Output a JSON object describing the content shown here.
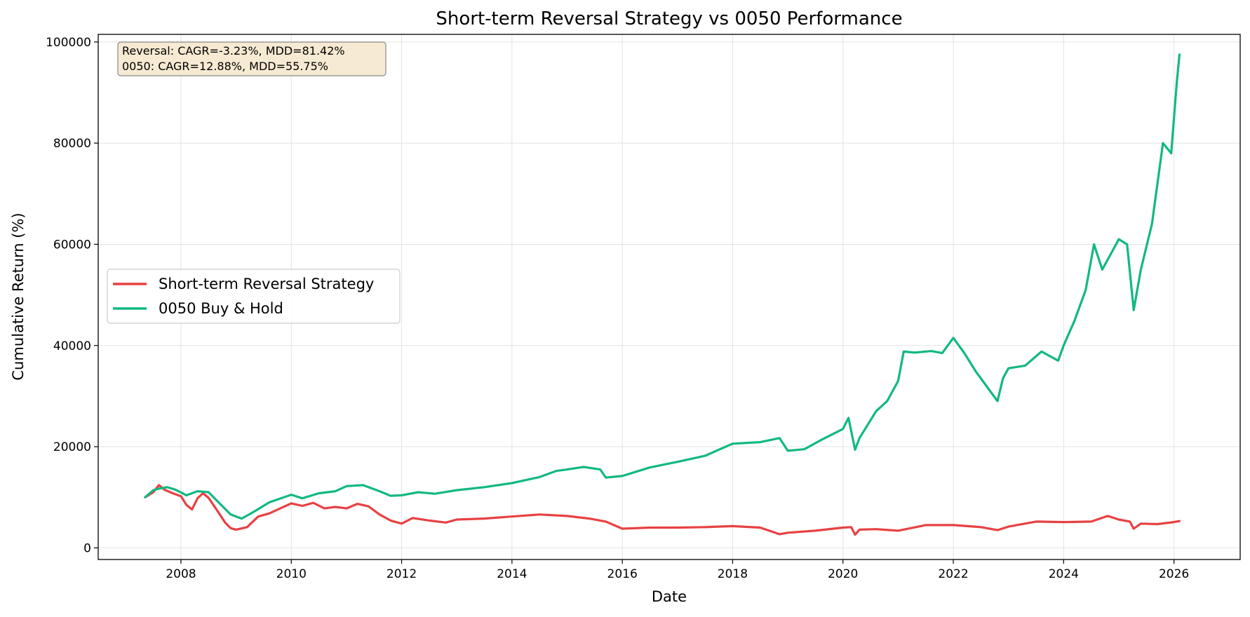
{
  "chart_data": {
    "type": "line",
    "title": "Short-term Reversal Strategy vs 0050 Performance",
    "xlabel": "Date",
    "ylabel": "Cumulative Return (%)",
    "xlim": [
      2006.5,
      2027.2
    ],
    "ylim": [
      -2300,
      101500
    ],
    "grid": true,
    "legend_position": "center-left",
    "x_ticks": [
      2008,
      2010,
      2012,
      2014,
      2016,
      2018,
      2020,
      2022,
      2024,
      2026
    ],
    "x_tick_labels": [
      "2008",
      "2010",
      "2012",
      "2014",
      "2016",
      "2018",
      "2020",
      "2022",
      "2024",
      "2026"
    ],
    "y_ticks": [
      0,
      20000,
      40000,
      60000,
      80000,
      100000
    ],
    "y_tick_labels": [
      "0",
      "20000",
      "40000",
      "60000",
      "80000",
      "100000"
    ],
    "annotation": [
      "Reversal: CAGR=-3.23%, MDD=81.42%",
      "0050: CAGR=12.88%, MDD=55.75%"
    ],
    "series": [
      {
        "name": "Short-term Reversal Strategy",
        "color": "#e84142",
        "x": [
          2007.35,
          2007.5,
          2007.6,
          2007.7,
          2007.85,
          2008.0,
          2008.1,
          2008.2,
          2008.3,
          2008.4,
          2008.5,
          2008.65,
          2008.8,
          2008.9,
          2009.0,
          2009.2,
          2009.4,
          2009.6,
          2009.8,
          2010.0,
          2010.2,
          2010.4,
          2010.6,
          2010.8,
          2011.0,
          2011.2,
          2011.4,
          2011.6,
          2011.8,
          2012.0,
          2012.2,
          2012.5,
          2012.8,
          2013.0,
          2013.5,
          2014.0,
          2014.5,
          2015.0,
          2015.4,
          2015.7,
          2016.0,
          2016.5,
          2017.0,
          2017.5,
          2018.0,
          2018.5,
          2018.85,
          2019.0,
          2019.5,
          2020.0,
          2020.15,
          2020.22,
          2020.3,
          2020.6,
          2021.0,
          2021.5,
          2022.0,
          2022.5,
          2022.8,
          2023.0,
          2023.5,
          2024.0,
          2024.5,
          2024.8,
          2025.0,
          2025.2,
          2025.27,
          2025.4,
          2025.7,
          2026.0,
          2026.1
        ],
        "values": [
          10000,
          11000,
          12400,
          11500,
          10800,
          10200,
          8500,
          7600,
          9800,
          10800,
          9900,
          7500,
          5000,
          3900,
          3600,
          4100,
          6200,
          6800,
          7800,
          8800,
          8300,
          8900,
          7800,
          8100,
          7800,
          8700,
          8200,
          6600,
          5400,
          4800,
          5900,
          5400,
          5000,
          5600,
          5800,
          6200,
          6600,
          6300,
          5800,
          5200,
          3800,
          4000,
          4000,
          4100,
          4300,
          4000,
          2700,
          3000,
          3400,
          4000,
          4100,
          2600,
          3600,
          3700,
          3400,
          4500,
          4500,
          4100,
          3500,
          4200,
          5200,
          5100,
          5200,
          6300,
          5600,
          5200,
          3800,
          4800,
          4700,
          5100,
          5300
        ]
      },
      {
        "name": "0050 Buy & Hold",
        "color": "#12b882",
        "x": [
          2007.35,
          2007.5,
          2007.6,
          2007.75,
          2007.9,
          2008.1,
          2008.3,
          2008.5,
          2008.7,
          2008.9,
          2009.1,
          2009.3,
          2009.6,
          2010.0,
          2010.2,
          2010.5,
          2010.8,
          2011.0,
          2011.3,
          2011.6,
          2011.8,
          2012.0,
          2012.3,
          2012.6,
          2013.0,
          2013.5,
          2014.0,
          2014.5,
          2014.8,
          2015.0,
          2015.3,
          2015.6,
          2015.7,
          2016.0,
          2016.5,
          2017.0,
          2017.5,
          2018.0,
          2018.5,
          2018.85,
          2019.0,
          2019.3,
          2019.6,
          2020.0,
          2020.1,
          2020.22,
          2020.3,
          2020.6,
          2020.8,
          2021.0,
          2021.1,
          2021.3,
          2021.6,
          2021.8,
          2022.0,
          2022.2,
          2022.4,
          2022.6,
          2022.8,
          2022.9,
          2023.0,
          2023.3,
          2023.6,
          2023.9,
          2024.0,
          2024.2,
          2024.4,
          2024.55,
          2024.7,
          2024.85,
          2025.0,
          2025.15,
          2025.27,
          2025.4,
          2025.6,
          2025.8,
          2025.95,
          2026.05,
          2026.1
        ],
        "values": [
          10000,
          11400,
          11700,
          12000,
          11500,
          10400,
          11200,
          11000,
          8800,
          6600,
          5800,
          7000,
          9000,
          10500,
          9800,
          10800,
          11200,
          12200,
          12400,
          11200,
          10300,
          10400,
          11000,
          10700,
          11400,
          12000,
          12800,
          14000,
          15200,
          15500,
          16000,
          15500,
          13900,
          14200,
          15900,
          17000,
          18200,
          20600,
          20900,
          21700,
          19200,
          19500,
          21300,
          23500,
          25700,
          19400,
          21700,
          27000,
          29000,
          33000,
          38800,
          38600,
          38900,
          38500,
          41500,
          38500,
          35000,
          32000,
          29000,
          33500,
          35500,
          36000,
          38800,
          37000,
          40000,
          45000,
          51000,
          60000,
          55000,
          58000,
          61000,
          60000,
          47000,
          55000,
          64000,
          80000,
          78000,
          92000,
          97500
        ]
      }
    ]
  }
}
